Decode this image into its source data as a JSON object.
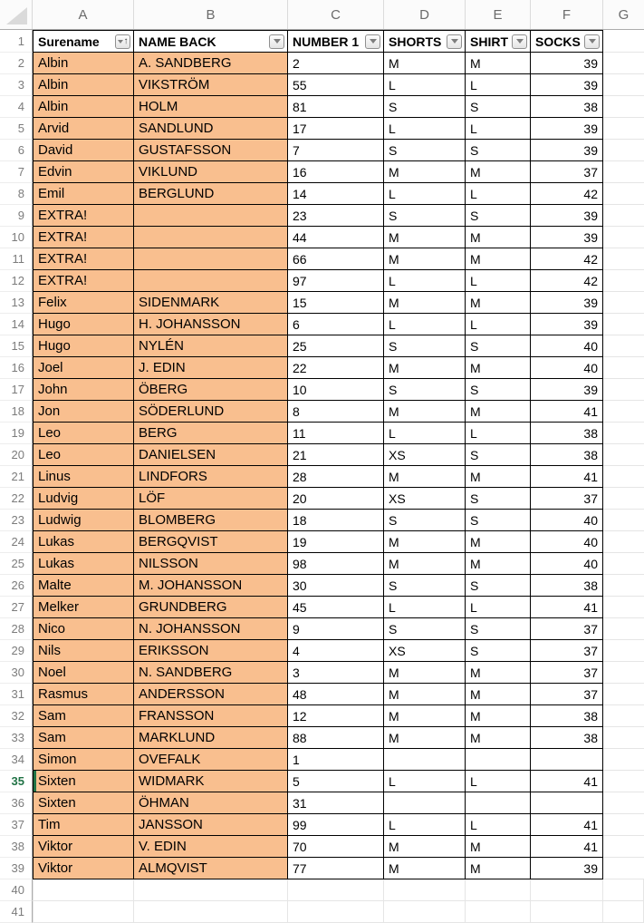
{
  "sheet": {
    "colors": {
      "row_fill_orange": "#F9BF8F",
      "active_green": "#217346"
    },
    "column_letters": [
      "A",
      "B",
      "C",
      "D",
      "E",
      "F",
      "G"
    ],
    "header_row_number": 1,
    "active_row": 35,
    "header": [
      {
        "label": "Surename",
        "icon": "filter-sort-ascending"
      },
      {
        "label": "NAME BACK",
        "icon": "filter-dropdown"
      },
      {
        "label": "NUMBER 1",
        "icon": "filter-dropdown"
      },
      {
        "label": "SHORTS",
        "icon": "filter-dropdown"
      },
      {
        "label": "SHIRT",
        "icon": "filter-dropdown"
      },
      {
        "label": "SOCKS",
        "icon": "filter-dropdown"
      }
    ],
    "rows": [
      {
        "n": 2,
        "cells": [
          "Albin",
          "A. SANDBERG",
          "2",
          "M",
          "M",
          "39"
        ]
      },
      {
        "n": 3,
        "cells": [
          "Albin",
          "VIKSTRÖM",
          "55",
          "L",
          "L",
          "39"
        ]
      },
      {
        "n": 4,
        "cells": [
          "Albin",
          "HOLM",
          "81",
          "S",
          "S",
          "38"
        ]
      },
      {
        "n": 5,
        "cells": [
          "Arvid",
          "SANDLUND",
          "17",
          "L",
          "L",
          "39"
        ]
      },
      {
        "n": 6,
        "cells": [
          "David",
          "GUSTAFSSON",
          "7",
          "S",
          "S",
          "39"
        ]
      },
      {
        "n": 7,
        "cells": [
          "Edvin",
          "VIKLUND",
          "16",
          "M",
          "M",
          "37"
        ]
      },
      {
        "n": 8,
        "cells": [
          "Emil",
          "BERGLUND",
          "14",
          "L",
          "L",
          "42"
        ]
      },
      {
        "n": 9,
        "cells": [
          "EXTRA!",
          "",
          "23",
          "S",
          "S",
          "39"
        ]
      },
      {
        "n": 10,
        "cells": [
          "EXTRA!",
          "",
          "44",
          "M",
          "M",
          "39"
        ]
      },
      {
        "n": 11,
        "cells": [
          "EXTRA!",
          "",
          "66",
          "M",
          "M",
          "42"
        ]
      },
      {
        "n": 12,
        "cells": [
          "EXTRA!",
          "",
          "97",
          "L",
          "L",
          "42"
        ]
      },
      {
        "n": 13,
        "cells": [
          "Felix",
          "SIDENMARK",
          "15",
          "M",
          "M",
          "39"
        ]
      },
      {
        "n": 14,
        "cells": [
          "Hugo",
          "H. JOHANSSON",
          "6",
          "L",
          "L",
          "39"
        ]
      },
      {
        "n": 15,
        "cells": [
          "Hugo",
          "NYLÉN",
          "25",
          "S",
          "S",
          "40"
        ]
      },
      {
        "n": 16,
        "cells": [
          "Joel",
          "J. EDIN",
          "22",
          "M",
          "M",
          "40"
        ]
      },
      {
        "n": 17,
        "cells": [
          "John",
          "ÖBERG",
          "10",
          "S",
          "S",
          "39"
        ]
      },
      {
        "n": 18,
        "cells": [
          "Jon",
          "SÖDERLUND",
          "8",
          "M",
          "M",
          "41"
        ]
      },
      {
        "n": 19,
        "cells": [
          "Leo",
          "BERG",
          "11",
          "L",
          "L",
          "38"
        ]
      },
      {
        "n": 20,
        "cells": [
          "Leo",
          "DANIELSEN",
          "21",
          "XS",
          "S",
          "38"
        ]
      },
      {
        "n": 21,
        "cells": [
          "Linus",
          "LINDFORS",
          "28",
          "M",
          "M",
          "41"
        ]
      },
      {
        "n": 22,
        "cells": [
          "Ludvig",
          "LÖF",
          "20",
          "XS",
          "S",
          "37"
        ]
      },
      {
        "n": 23,
        "cells": [
          "Ludwig",
          "BLOMBERG",
          "18",
          "S",
          "S",
          "40"
        ]
      },
      {
        "n": 24,
        "cells": [
          "Lukas",
          "BERGQVIST",
          "19",
          "M",
          "M",
          "40"
        ]
      },
      {
        "n": 25,
        "cells": [
          "Lukas",
          "NILSSON",
          "98",
          "M",
          "M",
          "40"
        ]
      },
      {
        "n": 26,
        "cells": [
          "Malte",
          "M. JOHANSSON",
          "30",
          "S",
          "S",
          "38"
        ]
      },
      {
        "n": 27,
        "cells": [
          "Melker",
          "GRUNDBERG",
          "45",
          "L",
          "L",
          "41"
        ]
      },
      {
        "n": 28,
        "cells": [
          "Nico",
          "N. JOHANSSON",
          "9",
          "S",
          "S",
          "37"
        ]
      },
      {
        "n": 29,
        "cells": [
          "Nils",
          "ERIKSSON",
          "4",
          "XS",
          "S",
          "37"
        ]
      },
      {
        "n": 30,
        "cells": [
          "Noel",
          "N. SANDBERG",
          "3",
          "M",
          "M",
          "37"
        ]
      },
      {
        "n": 31,
        "cells": [
          "Rasmus",
          "ANDERSSON",
          "48",
          "M",
          "M",
          "37"
        ]
      },
      {
        "n": 32,
        "cells": [
          "Sam",
          "FRANSSON",
          "12",
          "M",
          "M",
          "38"
        ]
      },
      {
        "n": 33,
        "cells": [
          "Sam",
          "MARKLUND",
          "88",
          "M",
          "M",
          "38"
        ]
      },
      {
        "n": 34,
        "cells": [
          "Simon",
          "OVEFALK",
          "1",
          "",
          "",
          ""
        ]
      },
      {
        "n": 35,
        "cells": [
          "Sixten",
          "WIDMARK",
          "5",
          "L",
          "L",
          "41"
        ]
      },
      {
        "n": 36,
        "cells": [
          "Sixten",
          "ÖHMAN",
          "31",
          "",
          "",
          ""
        ]
      },
      {
        "n": 37,
        "cells": [
          "Tim",
          "JANSSON",
          "99",
          "L",
          "L",
          "41"
        ]
      },
      {
        "n": 38,
        "cells": [
          "Viktor",
          "V. EDIN",
          "70",
          "M",
          "M",
          "41"
        ]
      },
      {
        "n": 39,
        "cells": [
          "Viktor",
          "ALMQVIST",
          "77",
          "M",
          "M",
          "39"
        ]
      },
      {
        "n": 40
      },
      {
        "n": 41
      }
    ]
  }
}
